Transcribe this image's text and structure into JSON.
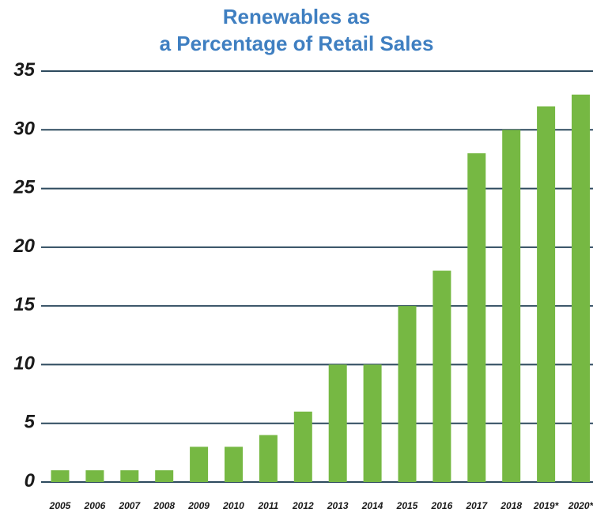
{
  "colors": {
    "title": "#3f7fc1",
    "bar": "#76b843",
    "grid": "#2d4a5e"
  },
  "chart_data": {
    "type": "bar",
    "title_lines": [
      "Renewables as",
      "a Percentage of Retail Sales"
    ],
    "xlabel": "",
    "ylabel": "",
    "ylim": [
      0,
      35
    ],
    "yticks": [
      "0",
      "5",
      "10",
      "15",
      "20",
      "25",
      "30",
      "35"
    ],
    "grid": true,
    "categories": [
      "2005",
      "2006",
      "2007",
      "2008",
      "2009",
      "2010",
      "2011",
      "2012",
      "2013",
      "2014",
      "2015",
      "2016",
      "2017",
      "2018",
      "2019*",
      "2020*"
    ],
    "values": [
      1,
      1,
      1,
      1,
      3,
      3,
      4,
      6,
      10,
      10,
      15,
      18,
      28,
      30,
      32,
      33
    ]
  }
}
